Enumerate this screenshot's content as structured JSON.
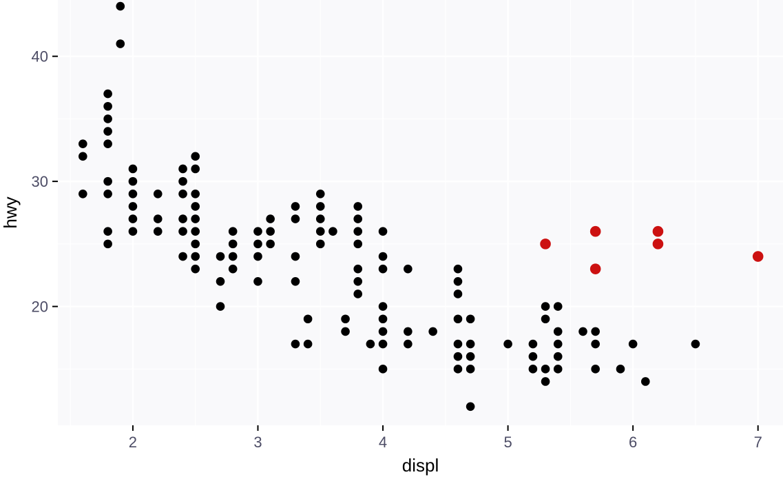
{
  "chart_data": {
    "type": "scatter",
    "title": "",
    "xlabel": "displ",
    "ylabel": "hwy",
    "xlim": [
      1.4,
      7.2
    ],
    "ylim": [
      10.5,
      44.5
    ],
    "x_ticks": [
      2,
      3,
      4,
      5,
      6,
      7
    ],
    "y_ticks": [
      20,
      30,
      40
    ],
    "grid": true,
    "legend": "none",
    "colors": {
      "panel_background": "#f9f9fb",
      "grid": "#ffffff",
      "tick_label": "#4d4d66",
      "default_point": "#000000",
      "highlight_point": "#cc1111"
    },
    "series": [
      {
        "color": "#000000",
        "points": [
          [
            1.6,
            33
          ],
          [
            1.6,
            32
          ],
          [
            1.6,
            29
          ],
          [
            1.8,
            37
          ],
          [
            1.8,
            36
          ],
          [
            1.8,
            35
          ],
          [
            1.8,
            34
          ],
          [
            1.8,
            33
          ],
          [
            1.8,
            30
          ],
          [
            1.8,
            29
          ],
          [
            1.8,
            26
          ],
          [
            1.8,
            25
          ],
          [
            1.9,
            44
          ],
          [
            1.9,
            41
          ],
          [
            2.0,
            31
          ],
          [
            2.0,
            30
          ],
          [
            2.0,
            29
          ],
          [
            2.0,
            28
          ],
          [
            2.0,
            27
          ],
          [
            2.0,
            26
          ],
          [
            2.2,
            29
          ],
          [
            2.2,
            27
          ],
          [
            2.2,
            26
          ],
          [
            2.4,
            31
          ],
          [
            2.4,
            30
          ],
          [
            2.4,
            29
          ],
          [
            2.4,
            27
          ],
          [
            2.4,
            26
          ],
          [
            2.4,
            24
          ],
          [
            2.5,
            32
          ],
          [
            2.5,
            31
          ],
          [
            2.5,
            29
          ],
          [
            2.5,
            28
          ],
          [
            2.5,
            27
          ],
          [
            2.5,
            26
          ],
          [
            2.5,
            25
          ],
          [
            2.5,
            24
          ],
          [
            2.5,
            23
          ],
          [
            2.7,
            24
          ],
          [
            2.7,
            22
          ],
          [
            2.7,
            20
          ],
          [
            2.8,
            26
          ],
          [
            2.8,
            25
          ],
          [
            2.8,
            24
          ],
          [
            2.8,
            23
          ],
          [
            3.0,
            26
          ],
          [
            3.0,
            25
          ],
          [
            3.0,
            24
          ],
          [
            3.0,
            22
          ],
          [
            3.1,
            27
          ],
          [
            3.1,
            26
          ],
          [
            3.1,
            25
          ],
          [
            3.3,
            28
          ],
          [
            3.3,
            27
          ],
          [
            3.3,
            24
          ],
          [
            3.3,
            22
          ],
          [
            3.3,
            17
          ],
          [
            3.4,
            19
          ],
          [
            3.4,
            17
          ],
          [
            3.5,
            29
          ],
          [
            3.5,
            28
          ],
          [
            3.5,
            27
          ],
          [
            3.5,
            26
          ],
          [
            3.5,
            25
          ],
          [
            3.6,
            26
          ],
          [
            3.7,
            19
          ],
          [
            3.7,
            18
          ],
          [
            3.8,
            28
          ],
          [
            3.8,
            27
          ],
          [
            3.8,
            26
          ],
          [
            3.8,
            25
          ],
          [
            3.8,
            23
          ],
          [
            3.8,
            22
          ],
          [
            3.8,
            21
          ],
          [
            3.9,
            17
          ],
          [
            4.0,
            26
          ],
          [
            4.0,
            24
          ],
          [
            4.0,
            23
          ],
          [
            4.0,
            20
          ],
          [
            4.0,
            19
          ],
          [
            4.0,
            18
          ],
          [
            4.0,
            17
          ],
          [
            4.0,
            15
          ],
          [
            4.2,
            23
          ],
          [
            4.2,
            18
          ],
          [
            4.2,
            17
          ],
          [
            4.4,
            18
          ],
          [
            4.6,
            23
          ],
          [
            4.6,
            22
          ],
          [
            4.6,
            21
          ],
          [
            4.6,
            19
          ],
          [
            4.6,
            17
          ],
          [
            4.6,
            16
          ],
          [
            4.6,
            15
          ],
          [
            4.7,
            19
          ],
          [
            4.7,
            17
          ],
          [
            4.7,
            16
          ],
          [
            4.7,
            15
          ],
          [
            4.7,
            12
          ],
          [
            5.0,
            17
          ],
          [
            5.2,
            17
          ],
          [
            5.2,
            16
          ],
          [
            5.2,
            15
          ],
          [
            5.3,
            20
          ],
          [
            5.3,
            19
          ],
          [
            5.3,
            15
          ],
          [
            5.3,
            14
          ],
          [
            5.4,
            20
          ],
          [
            5.4,
            18
          ],
          [
            5.4,
            17
          ],
          [
            5.4,
            16
          ],
          [
            5.4,
            15
          ],
          [
            5.6,
            18
          ],
          [
            5.7,
            18
          ],
          [
            5.7,
            17
          ],
          [
            5.7,
            15
          ],
          [
            5.9,
            15
          ],
          [
            6.0,
            17
          ],
          [
            6.1,
            14
          ],
          [
            6.5,
            17
          ]
        ]
      },
      {
        "color": "#cc1111",
        "points": [
          [
            5.3,
            25
          ],
          [
            5.7,
            26
          ],
          [
            5.7,
            23
          ],
          [
            6.2,
            26
          ],
          [
            6.2,
            25
          ],
          [
            7.0,
            24
          ]
        ]
      }
    ]
  }
}
